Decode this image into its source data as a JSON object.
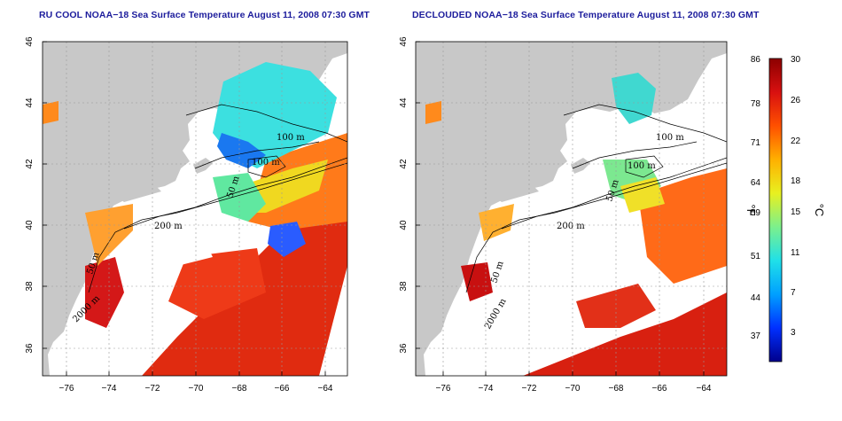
{
  "panels": [
    {
      "id": "left",
      "title": "RU COOL NOAA−18 Sea Surface Temperature August 11, 2008 07:30 GMT",
      "type": "raw"
    },
    {
      "id": "right",
      "title": "DECLOUDED NOAA−18 Sea Surface Temperature August 11, 2008 07:30 GMT",
      "type": "declouded"
    }
  ],
  "axes": {
    "lat_ticks": [
      "46",
      "44",
      "42",
      "40",
      "38",
      "36"
    ],
    "lon_ticks": [
      "−76",
      "−74",
      "−72",
      "−70",
      "−68",
      "−66",
      "−64"
    ]
  },
  "isobaths": [
    "100 m",
    "100 m",
    "50 m",
    "200 m",
    "50 m",
    "2000 m"
  ],
  "colorbar": {
    "fahrenheit_ticks": [
      "86",
      "78",
      "71",
      "64",
      "59",
      "51",
      "44",
      "37"
    ],
    "celsius_ticks": [
      "30",
      "26",
      "22",
      "18",
      "15",
      "11",
      "7",
      "3"
    ],
    "left_unit": "°F",
    "right_unit": "°C",
    "colors": [
      "#00008c",
      "#0030ff",
      "#00a0ff",
      "#20e0e8",
      "#7cf08c",
      "#e8f020",
      "#ffb000",
      "#ff5000",
      "#d81010",
      "#8c0000"
    ]
  },
  "colors": {
    "land": "#c8c8c8",
    "ocean_no_data": "#ffffff",
    "grid": "#9a9a9a",
    "title": "#1c1c9c"
  }
}
